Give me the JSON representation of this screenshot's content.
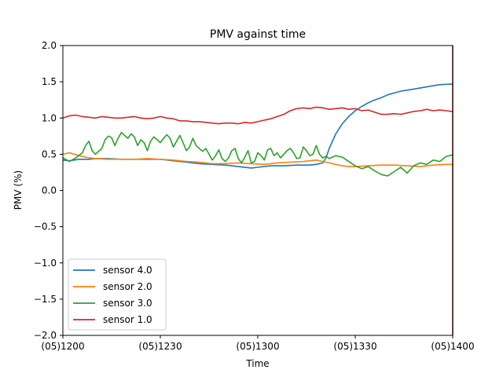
{
  "chart_data": {
    "type": "line",
    "title": "PMV against  time",
    "xlabel": "Time",
    "ylabel": "PMV (%)",
    "xlim": [
      0,
      120
    ],
    "ylim": [
      -2.0,
      2.0
    ],
    "x_ticks": [
      {
        "value": 0,
        "label": "(05)1200"
      },
      {
        "value": 30,
        "label": "(05)1230"
      },
      {
        "value": 60,
        "label": "(05)1300"
      },
      {
        "value": 90,
        "label": "(05)1330"
      },
      {
        "value": 120,
        "label": "(05)1400"
      }
    ],
    "y_ticks": [
      {
        "value": 2.0,
        "label": "2.0"
      },
      {
        "value": 1.5,
        "label": "1.5"
      },
      {
        "value": 1.0,
        "label": "1.0"
      },
      {
        "value": 0.5,
        "label": "0.5"
      },
      {
        "value": 0.0,
        "label": "0.0"
      },
      {
        "value": -0.5,
        "label": "−0.5"
      },
      {
        "value": -1.0,
        "label": "−1.0"
      },
      {
        "value": -1.5,
        "label": "−1.5"
      },
      {
        "value": -2.0,
        "label": "−2.0"
      }
    ],
    "grid": false,
    "legend_position": "lower-left",
    "series": [
      {
        "name": "sensor 4.0",
        "color": "#1f77b4",
        "x": [
          0,
          2,
          5,
          8,
          10,
          14,
          18,
          22,
          26,
          30,
          34,
          38,
          42,
          46,
          50,
          54,
          58,
          60,
          64,
          68,
          72,
          76,
          78,
          80,
          81,
          82,
          84,
          86,
          88,
          90,
          92,
          94,
          96,
          98,
          100,
          104,
          108,
          112,
          116,
          120
        ],
        "y": [
          0.42,
          0.41,
          0.43,
          0.43,
          0.44,
          0.44,
          0.43,
          0.43,
          0.43,
          0.43,
          0.41,
          0.39,
          0.37,
          0.36,
          0.35,
          0.33,
          0.31,
          0.32,
          0.34,
          0.34,
          0.35,
          0.35,
          0.36,
          0.38,
          0.45,
          0.58,
          0.78,
          0.92,
          1.02,
          1.1,
          1.16,
          1.21,
          1.25,
          1.28,
          1.32,
          1.37,
          1.4,
          1.43,
          1.46,
          1.47
        ]
      },
      {
        "name": "sensor 2.0",
        "color": "#ff7f0e",
        "x": [
          0,
          2,
          5,
          8,
          10,
          14,
          18,
          22,
          26,
          30,
          34,
          38,
          42,
          46,
          50,
          54,
          58,
          62,
          66,
          70,
          74,
          76,
          78,
          80,
          82,
          84,
          86,
          88,
          90,
          94,
          98,
          102,
          106,
          110,
          114,
          118,
          120
        ],
        "y": [
          0.5,
          0.52,
          0.48,
          0.45,
          0.44,
          0.43,
          0.43,
          0.43,
          0.44,
          0.43,
          0.42,
          0.4,
          0.39,
          0.37,
          0.37,
          0.38,
          0.37,
          0.36,
          0.38,
          0.39,
          0.4,
          0.41,
          0.42,
          0.4,
          0.38,
          0.36,
          0.34,
          0.33,
          0.33,
          0.34,
          0.35,
          0.35,
          0.34,
          0.33,
          0.35,
          0.36,
          0.36
        ]
      },
      {
        "name": "sensor 3.0",
        "color": "#2ca02c",
        "x": [
          0,
          2,
          4,
          6,
          7,
          8,
          9,
          10,
          12,
          13,
          14,
          15,
          16,
          17,
          18,
          19,
          20,
          21,
          22,
          23,
          24,
          25,
          26,
          27,
          28,
          29,
          30,
          31,
          32,
          33,
          34,
          35,
          36,
          37,
          38,
          39,
          40,
          41,
          42,
          43,
          44,
          45,
          46,
          47,
          48,
          49,
          50,
          51,
          52,
          53,
          54,
          55,
          56,
          57,
          58,
          59,
          60,
          61,
          62,
          63,
          64,
          65,
          66,
          67,
          68,
          69,
          70,
          71,
          72,
          73,
          74,
          75,
          76,
          77,
          78,
          79,
          80,
          81,
          82,
          84,
          86,
          88,
          90,
          92,
          94,
          96,
          98,
          100,
          102,
          104,
          106,
          108,
          110,
          112,
          114,
          116,
          118,
          120
        ],
        "y": [
          0.45,
          0.4,
          0.45,
          0.52,
          0.62,
          0.68,
          0.55,
          0.5,
          0.58,
          0.7,
          0.75,
          0.73,
          0.62,
          0.72,
          0.8,
          0.76,
          0.72,
          0.78,
          0.74,
          0.62,
          0.7,
          0.66,
          0.55,
          0.68,
          0.74,
          0.7,
          0.66,
          0.72,
          0.77,
          0.72,
          0.6,
          0.68,
          0.76,
          0.66,
          0.55,
          0.6,
          0.72,
          0.62,
          0.58,
          0.54,
          0.58,
          0.5,
          0.42,
          0.48,
          0.56,
          0.44,
          0.4,
          0.45,
          0.55,
          0.58,
          0.44,
          0.38,
          0.46,
          0.55,
          0.38,
          0.4,
          0.52,
          0.48,
          0.42,
          0.56,
          0.58,
          0.48,
          0.52,
          0.45,
          0.5,
          0.55,
          0.58,
          0.52,
          0.44,
          0.45,
          0.6,
          0.55,
          0.48,
          0.5,
          0.62,
          0.5,
          0.45,
          0.47,
          0.44,
          0.48,
          0.46,
          0.4,
          0.34,
          0.3,
          0.33,
          0.27,
          0.22,
          0.2,
          0.26,
          0.32,
          0.24,
          0.34,
          0.38,
          0.36,
          0.42,
          0.4,
          0.47,
          0.49
        ]
      },
      {
        "name": "sensor 1.0",
        "color": "#d62728",
        "x": [
          0,
          2,
          4,
          6,
          8,
          10,
          12,
          14,
          16,
          18,
          20,
          22,
          24,
          26,
          28,
          30,
          32,
          34,
          36,
          38,
          40,
          42,
          44,
          46,
          48,
          50,
          52,
          54,
          56,
          58,
          60,
          62,
          64,
          66,
          68,
          70,
          72,
          74,
          76,
          78,
          80,
          82,
          84,
          86,
          88,
          90,
          92,
          94,
          96,
          98,
          100,
          102,
          104,
          106,
          108,
          110,
          112,
          114,
          116,
          118,
          120
        ],
        "y": [
          1.0,
          1.03,
          1.04,
          1.02,
          1.01,
          1.0,
          1.02,
          1.01,
          1.0,
          1.0,
          1.01,
          1.02,
          1.0,
          0.99,
          1.0,
          1.02,
          1.0,
          0.99,
          0.96,
          0.96,
          0.95,
          0.95,
          0.94,
          0.93,
          0.92,
          0.93,
          0.93,
          0.92,
          0.94,
          0.93,
          0.95,
          0.97,
          0.99,
          1.02,
          1.05,
          1.1,
          1.13,
          1.14,
          1.13,
          1.15,
          1.14,
          1.12,
          1.13,
          1.14,
          1.12,
          1.13,
          1.1,
          1.11,
          1.08,
          1.05,
          1.05,
          1.06,
          1.05,
          1.07,
          1.09,
          1.1,
          1.12,
          1.1,
          1.11,
          1.1,
          1.09
        ]
      }
    ]
  }
}
